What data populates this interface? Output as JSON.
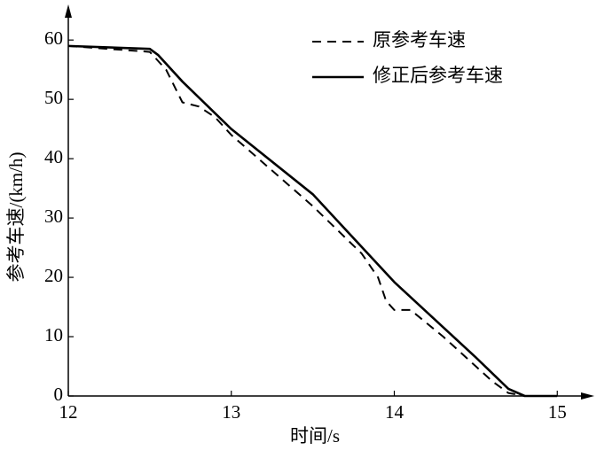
{
  "chart_data": {
    "type": "line",
    "xlabel": "时间/s",
    "ylabel": "参考车速/(km/h)",
    "xlim": [
      12,
      15.2
    ],
    "ylim": [
      0,
      66
    ],
    "xticks": [
      12,
      13,
      14,
      15
    ],
    "yticks": [
      0,
      10,
      20,
      30,
      40,
      50,
      60
    ],
    "legend": "upper right",
    "series": [
      {
        "name": "原参考车速",
        "color": "#000000",
        "dash": true,
        "x": [
          12,
          12.5,
          12.6,
          12.7,
          12.8,
          12.9,
          13,
          13.5,
          13.8,
          13.9,
          13.95,
          14.0,
          14.1,
          14.3,
          14.5,
          14.6,
          14.7,
          14.8
        ],
        "values": [
          59,
          58,
          55,
          49.5,
          48.8,
          47,
          44,
          32,
          24,
          20,
          16,
          14.5,
          14.5,
          10,
          5,
          2.5,
          0.5,
          0
        ]
      },
      {
        "name": "修正后参考车速",
        "color": "#000000",
        "dash": false,
        "x": [
          12,
          12.5,
          12.55,
          12.7,
          13,
          13.5,
          14,
          14.5,
          14.7,
          14.8,
          15
        ],
        "values": [
          59,
          58.5,
          57.5,
          53,
          45,
          34,
          19.2,
          6.5,
          1.2,
          0,
          0
        ]
      }
    ]
  }
}
